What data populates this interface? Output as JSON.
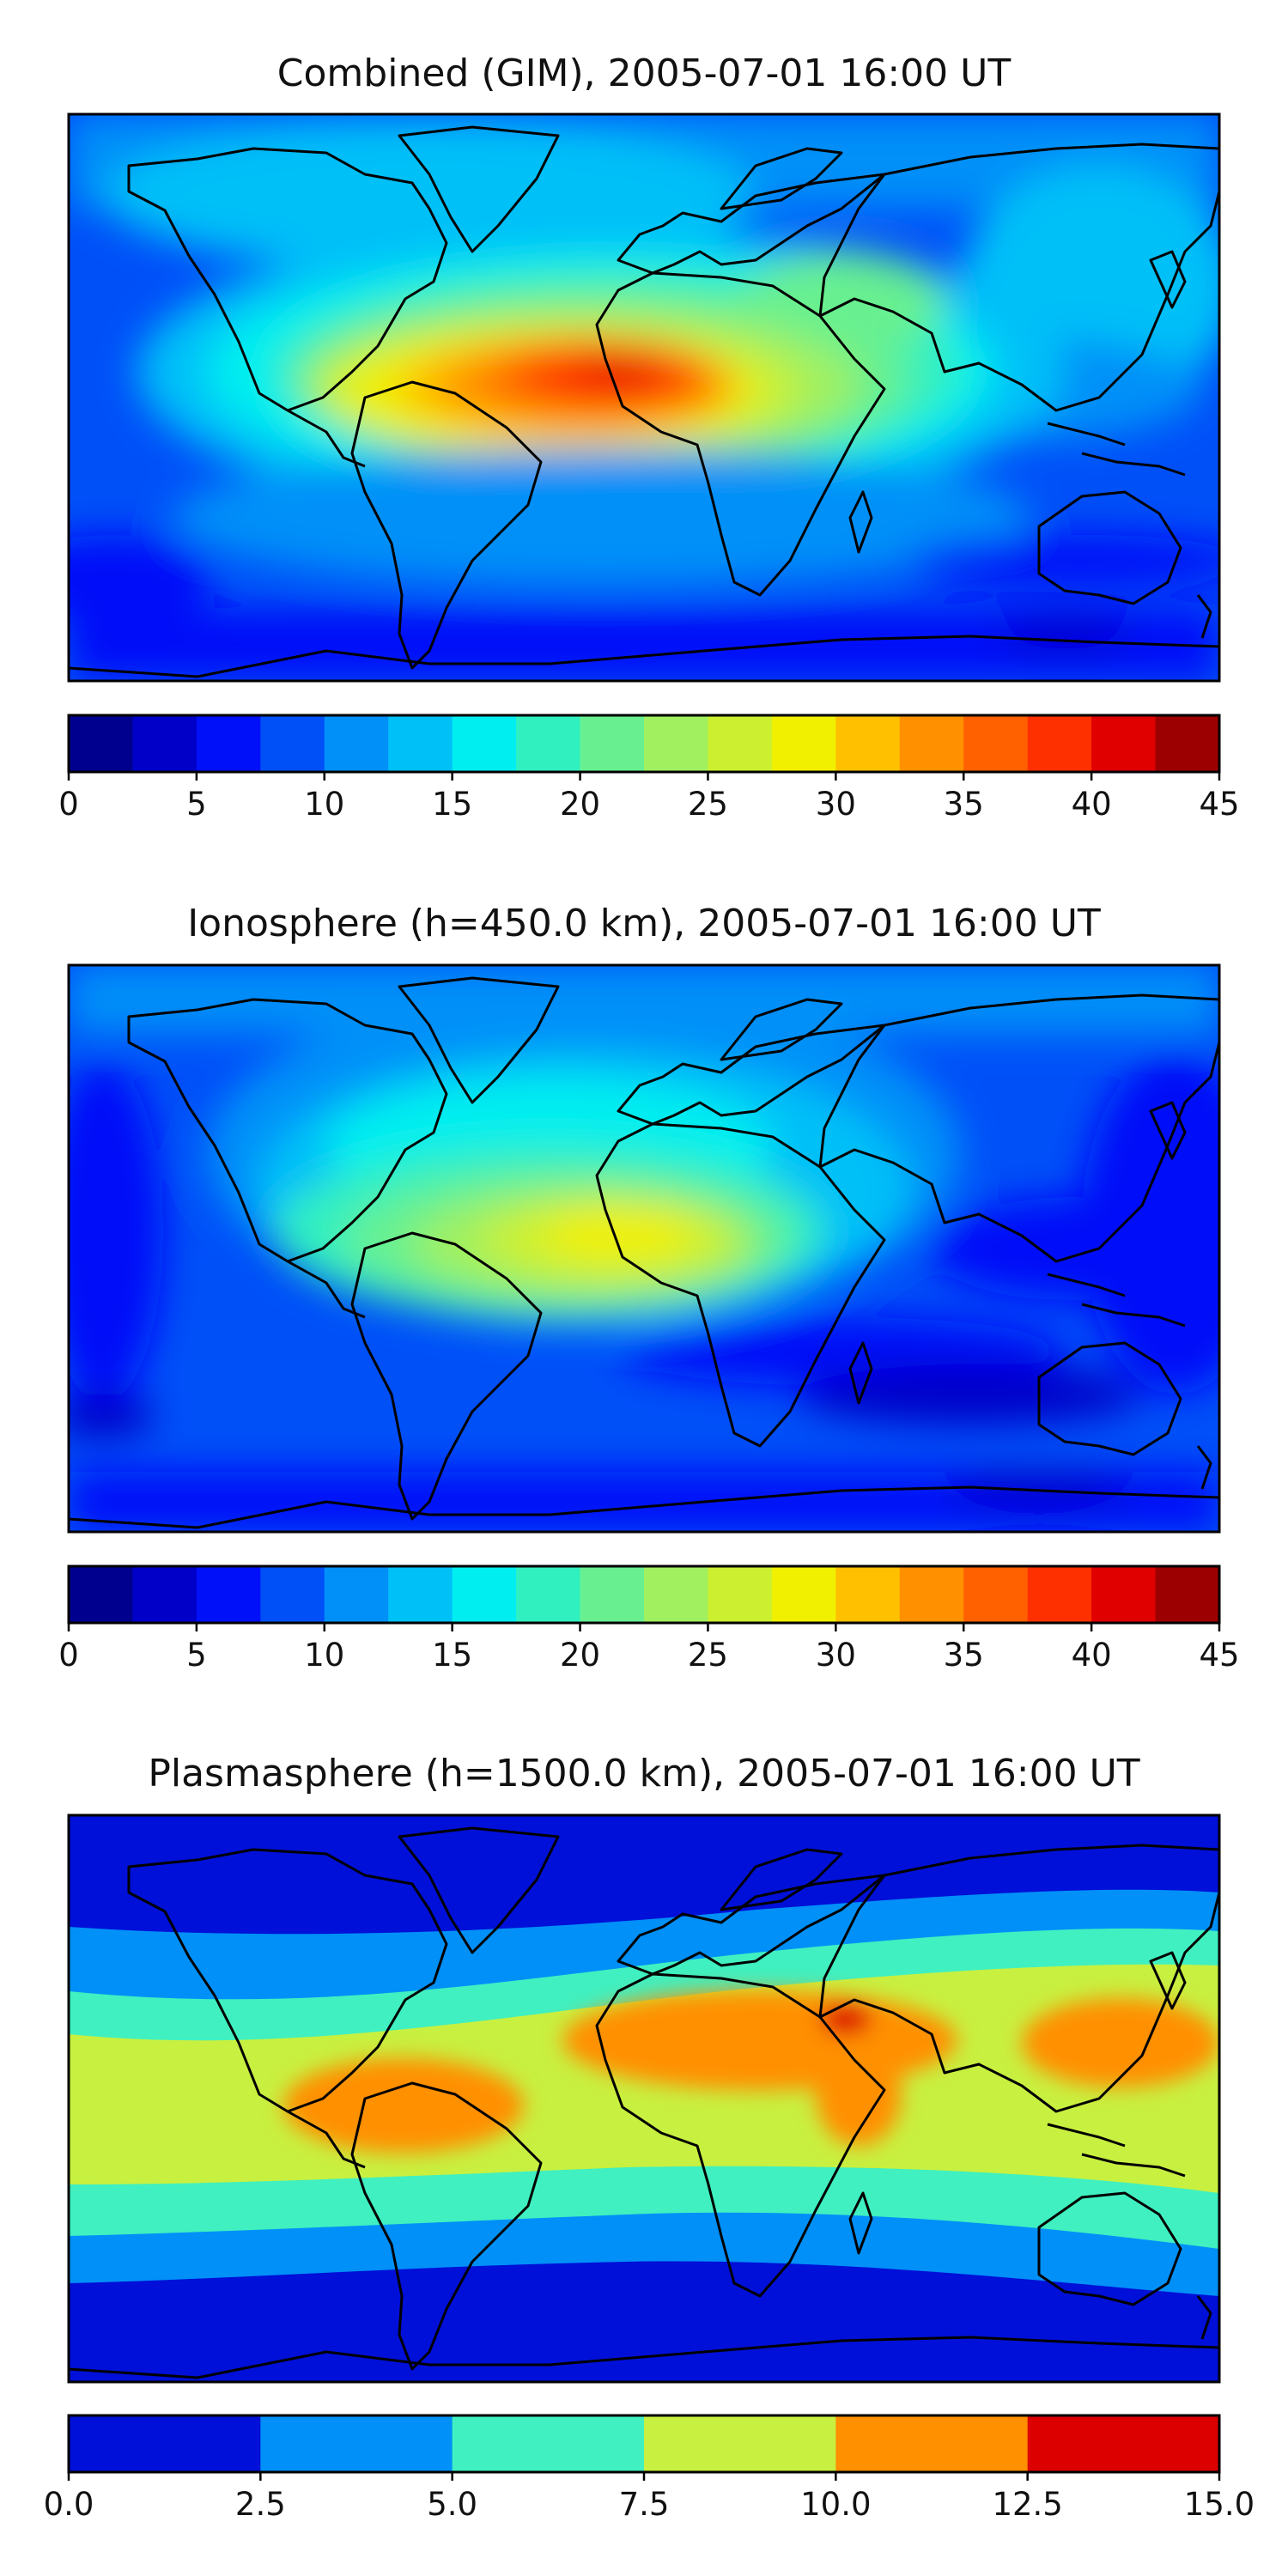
{
  "figure": {
    "panels": [
      {
        "title": "Combined (GIM), 2005-07-01 16:00 UT",
        "colorbar": {
          "ticks": [
            "0",
            "5",
            "10",
            "15",
            "20",
            "25",
            "30",
            "35",
            "40",
            "45"
          ],
          "colors": [
            "#00008f",
            "#0000c8",
            "#0010f8",
            "#0050f8",
            "#0090f8",
            "#00c0f8",
            "#00eef0",
            "#30f0c0",
            "#68f090",
            "#a0f060",
            "#ccf030",
            "#f0f000",
            "#ffc000",
            "#ff9000",
            "#ff6000",
            "#ff3000",
            "#e00000",
            "#9c0000"
          ]
        }
      },
      {
        "title": "Ionosphere  (h=450.0 km), 2005-07-01 16:00 UT",
        "colorbar": {
          "ticks": [
            "0",
            "5",
            "10",
            "15",
            "20",
            "25",
            "30",
            "35",
            "40",
            "45"
          ],
          "colors": [
            "#00008f",
            "#0000c8",
            "#0010f8",
            "#0050f8",
            "#0090f8",
            "#00c0f8",
            "#00eef0",
            "#30f0c0",
            "#68f090",
            "#a0f060",
            "#ccf030",
            "#f0f000",
            "#ffc000",
            "#ff9000",
            "#ff6000",
            "#ff3000",
            "#e00000",
            "#9c0000"
          ]
        }
      },
      {
        "title": "Plasmasphere (h=1500.0 km), 2005-07-01 16:00 UT",
        "colorbar": {
          "ticks": [
            "0.0",
            "2.5",
            "5.0",
            "7.5",
            "10.0",
            "12.5",
            "15.0"
          ],
          "colors": [
            "#0010d8",
            "#0090f8",
            "#40f0c0",
            "#c8f040",
            "#ff9000",
            "#dd0000"
          ]
        }
      }
    ]
  },
  "chart_data": [
    {
      "type": "heatmap",
      "title": "Combined (GIM), 2005-07-01 16:00 UT",
      "projection": "plate-carree world map with coastlines",
      "colorbar_range": [
        0,
        45
      ],
      "colorbar_levels": [
        0,
        2.5,
        5,
        7.5,
        10,
        12.5,
        15,
        17.5,
        20,
        22.5,
        25,
        27.5,
        30,
        32.5,
        35,
        37.5,
        40,
        42.5,
        45
      ],
      "colorbar_ticks": [
        0,
        5,
        10,
        15,
        20,
        25,
        30,
        35,
        40,
        45
      ],
      "max_region": "equatorial Atlantic / West Africa, ~40-42.5",
      "background_level": "~5-10"
    },
    {
      "type": "heatmap",
      "title": "Ionosphere  (h=450.0 km), 2005-07-01 16:00 UT",
      "projection": "plate-carree world map with coastlines",
      "colorbar_range": [
        0,
        45
      ],
      "colorbar_levels": [
        0,
        2.5,
        5,
        7.5,
        10,
        12.5,
        15,
        17.5,
        20,
        22.5,
        25,
        27.5,
        30,
        32.5,
        35,
        37.5,
        40,
        42.5,
        45
      ],
      "colorbar_ticks": [
        0,
        5,
        10,
        15,
        20,
        25,
        30,
        35,
        40,
        45
      ],
      "max_region": "equatorial Atlantic, ~27.5-30",
      "background_level": "~2.5-10"
    },
    {
      "type": "heatmap",
      "title": "Plasmasphere (h=1500.0 km), 2005-07-01 16:00 UT",
      "projection": "plate-carree world map with coastlines",
      "colorbar_range": [
        0,
        15
      ],
      "colorbar_levels": [
        0,
        2.5,
        5,
        7.5,
        10,
        12.5,
        15
      ],
      "colorbar_ticks": [
        0,
        2.5,
        5,
        7.5,
        10,
        12.5,
        15
      ],
      "max_region": "Arabian Peninsula, ~12.5-15",
      "background_level": "~0-2.5 at high latitudes, 7.5-10 in the tropical band"
    }
  ]
}
